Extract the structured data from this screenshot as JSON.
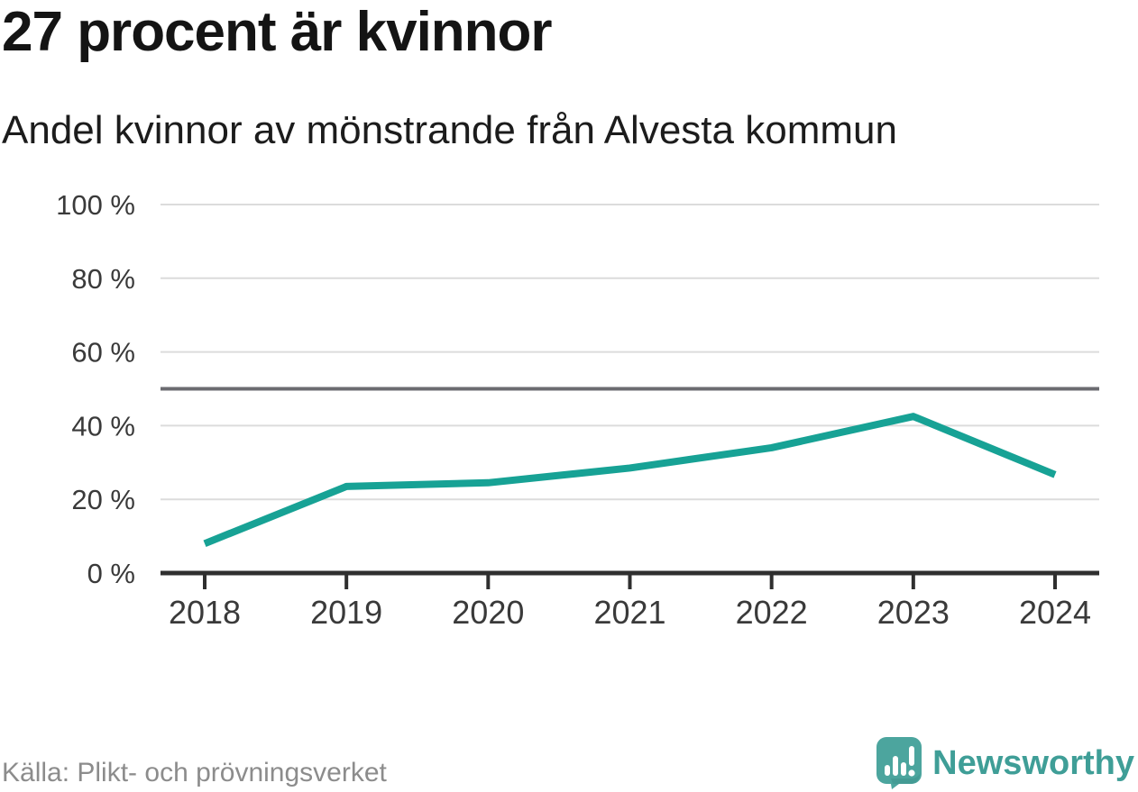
{
  "header": {
    "title": "27 procent är kvinnor",
    "subtitle": "Andel kvinnor av mönstrande från Alvesta kommun"
  },
  "chart_data": {
    "type": "line",
    "title": "27 procent är kvinnor",
    "subtitle": "Andel kvinnor av mönstrande från Alvesta kommun",
    "x": [
      2018,
      2019,
      2020,
      2021,
      2022,
      2023,
      2024
    ],
    "series": [
      {
        "name": "Andel kvinnor av mönstrande",
        "values": [
          8,
          23.5,
          24.5,
          28.5,
          34,
          42.5,
          26.7
        ]
      }
    ],
    "unit": "%",
    "ylim": [
      0,
      100
    ],
    "yticks": [
      0,
      20,
      40,
      60,
      80,
      100
    ],
    "ytick_suffix": " %",
    "reference_line": 50,
    "grid": true,
    "legend": "none",
    "line_color": "#17a295"
  },
  "footer": {
    "source": "Källa: Plikt- och prövningsverket",
    "brand": "Newsworthy"
  },
  "colors": {
    "accent": "#17a295",
    "brand_teal": "#4ca59e",
    "brand_text": "#3f9e97",
    "grid": "#dcdcdc",
    "reference": "#6b6b70",
    "axis": "#2f2f2f",
    "tick_text": "#3a3a3a",
    "title_text": "#141414",
    "source_text": "#8c8c8c",
    "background": "#ffffff"
  }
}
